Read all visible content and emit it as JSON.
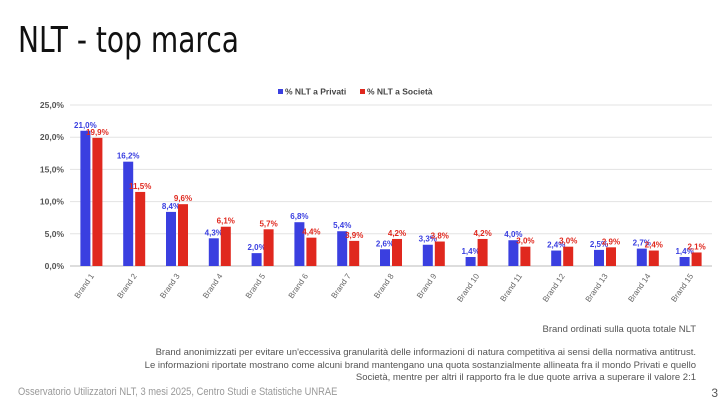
{
  "title": "NLT - top marca",
  "chart_data": {
    "type": "bar",
    "title": "",
    "xlabel": "",
    "ylabel": "",
    "ylim": [
      0,
      25
    ],
    "yticks": [
      "0,0%",
      "5,0%",
      "10,0%",
      "15,0%",
      "20,0%",
      "25,0%"
    ],
    "grid": true,
    "legend_position": "top",
    "categories": [
      "Brand 1",
      "Brand 2",
      "Brand 3",
      "Brand 4",
      "Brand 5",
      "Brand 6",
      "Brand 7",
      "Brand 8",
      "Brand 9",
      "Brand 10",
      "Brand 11",
      "Brand 12",
      "Brand 13",
      "Brand 14",
      "Brand 15"
    ],
    "series": [
      {
        "name": "% NLT a Privati",
        "color": "#3a3fe0",
        "values": [
          21.0,
          16.2,
          8.4,
          4.3,
          2.0,
          6.8,
          5.4,
          2.6,
          3.3,
          1.4,
          4.0,
          2.4,
          2.5,
          2.7,
          1.4
        ],
        "labels": [
          "21,0%",
          "16,2%",
          "8,4%",
          "4,3%",
          "2,0%",
          "6,8%",
          "5,4%",
          "2,6%",
          "3,3%",
          "1,4%",
          "4,0%",
          "2,4%",
          "2,5%",
          "2,7%",
          "1,4%"
        ]
      },
      {
        "name": "% NLT a Società",
        "color": "#e0281e",
        "values": [
          19.9,
          11.5,
          9.6,
          6.1,
          5.7,
          4.4,
          3.9,
          4.2,
          3.8,
          4.2,
          3.0,
          3.0,
          2.9,
          2.4,
          2.1
        ],
        "labels": [
          "19,9%",
          "11,5%",
          "9,6%",
          "6,1%",
          "5,7%",
          "4,4%",
          "3,9%",
          "4,2%",
          "3,8%",
          "4,2%",
          "3,0%",
          "3,0%",
          "2,9%",
          "2,4%",
          "2,1%"
        ]
      }
    ]
  },
  "notes": {
    "sort_note": "Brand ordinati sulla quota totale NLT",
    "line1": "Brand anonimizzati per evitare un'eccessiva granularità delle informazioni di natura competitiva ai sensi della normativa antitrust.",
    "line2": "Le informazioni riportate mostrano come alcuni brand mantengano una quota sostanzialmente allineata fra il mondo Privati e quello",
    "line3": "Società, mentre per altri il rapporto fra le due quote arriva a superare il valore 2:1"
  },
  "footer": "Osservatorio Utilizzatori NLT, 3 mesi 2025, Centro Studi e Statistiche UNRAE",
  "page_number": "3"
}
